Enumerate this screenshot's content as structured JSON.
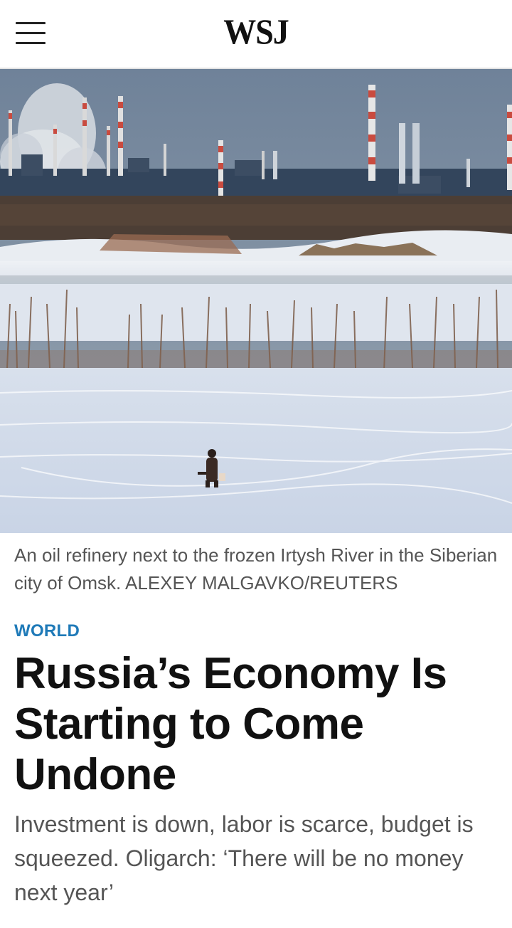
{
  "header": {
    "logo": "WSJ",
    "menu_icon": "hamburger-menu-icon"
  },
  "hero_image": {
    "subject": "oil refinery smokestacks beyond a snow-covered frozen river with a lone ice fisherman",
    "colors": {
      "sky": "#7d8fa4",
      "snow": "#dfe6f0",
      "shrub": "#7a5a46",
      "stack_red": "#c94b3f"
    }
  },
  "article": {
    "caption": "An oil refinery next to the frozen Irtysh River in the Siberian city of Omsk. ALEXEY MALGAVKO/REUTERS",
    "section": "WORLD",
    "headline": "Russia’s Economy Is Starting to Come Undone",
    "dek": "Investment is down, labor is scarce, budget is squeezed. Oligarch: ‘There will be no money next year’"
  },
  "colors": {
    "accent": "#1f7ab8",
    "headline": "#111111",
    "secondary_text": "#555555"
  }
}
